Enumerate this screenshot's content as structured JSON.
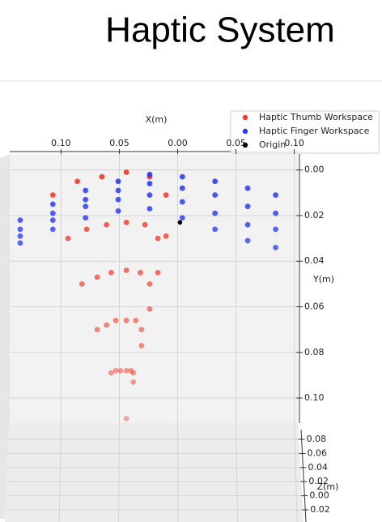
{
  "chart_data": {
    "type": "scatter3d",
    "title": "Haptic System",
    "xlabel": "X(m)",
    "ylabel": "Y(m)",
    "zlabel": "Z(m)",
    "xlim": [
      0.144,
      -0.103
    ],
    "xticks": [
      {
        "value": 0.1,
        "label": "0.10"
      },
      {
        "value": 0.05,
        "label": "0.05"
      },
      {
        "value": 0,
        "label": "0.00"
      },
      {
        "value": -0.05,
        "label": "0.05"
      },
      {
        "value": -0.1,
        "label": "0.10"
      }
    ],
    "ylim": [
      -0.007,
      0.111
    ],
    "yticks": [
      {
        "value": 0,
        "label": "0.00"
      },
      {
        "value": 0.02,
        "label": "0.02"
      },
      {
        "value": 0.04,
        "label": "0.04"
      },
      {
        "value": 0.06,
        "label": "0.06"
      },
      {
        "value": 0.08,
        "label": "0.08"
      },
      {
        "value": 0.1,
        "label": "0.10"
      }
    ],
    "zlim": [
      0.09,
      -0.03
    ],
    "zticks": [
      {
        "value": 0.08,
        "label": "0.08"
      },
      {
        "value": 0.06,
        "label": "0.06"
      },
      {
        "value": 0.04,
        "label": "0.04"
      },
      {
        "value": 0.02,
        "label": "0.02"
      },
      {
        "value": 0,
        "label": "0.00"
      },
      {
        "value": -0.02,
        "label": "0.02"
      }
    ],
    "grid": true,
    "legend": "upper right",
    "series": [
      {
        "name": "Haptic Thumb Workspace",
        "color": "#f03a2a",
        "x": [
          0.107,
          0.094,
          0.082,
          0.069,
          0.057,
          0.086,
          0.078,
          0.069,
          0.061,
          0.053,
          0.065,
          0.061,
          0.057,
          0.053,
          0.049,
          0.044,
          0.044,
          0.044,
          0.044,
          0.044,
          0.024,
          0.028,
          0.032,
          0.036,
          0.04,
          0.01,
          0.017,
          0.024,
          0.031,
          0.038,
          0.01,
          0.017,
          0.024,
          0.031,
          0.038,
          0.044
        ],
        "y": [
          0.011,
          0.03,
          0.05,
          0.07,
          0.089,
          0.005,
          0.026,
          0.047,
          0.068,
          0.088,
          0.003,
          0.024,
          0.045,
          0.066,
          0.088,
          0.001,
          0.023,
          0.044,
          0.066,
          0.088,
          0.003,
          0.024,
          0.045,
          0.066,
          0.088,
          0.011,
          0.03,
          0.05,
          0.07,
          0.089,
          0.029,
          0.045,
          0.061,
          0.077,
          0.093,
          0.109
        ]
      },
      {
        "name": "Haptic Finger Workspace",
        "color": "#2b3df0",
        "x": [
          0.135,
          0.107,
          0.079,
          0.051,
          0.024,
          -0.004,
          -0.032,
          -0.06,
          -0.084,
          0.135,
          0.107,
          0.079,
          0.051,
          0.024,
          -0.004,
          -0.032,
          -0.06,
          -0.084,
          0.135,
          0.107,
          0.079,
          0.051,
          0.024,
          -0.004,
          -0.032,
          -0.06,
          -0.084,
          0.135,
          0.107,
          0.079,
          0.051,
          0.024,
          -0.004,
          -0.032,
          -0.06,
          -0.084
        ],
        "y": [
          0.022,
          0.015,
          0.009,
          0.005,
          0.002,
          0.003,
          0.005,
          0.008,
          0.011,
          0.026,
          0.019,
          0.013,
          0.009,
          0.006,
          0.008,
          0.011,
          0.016,
          0.019,
          0.029,
          0.022,
          0.016,
          0.013,
          0.011,
          0.014,
          0.019,
          0.024,
          0.026,
          0.032,
          0.026,
          0.021,
          0.018,
          0.017,
          0.021,
          0.026,
          0.031,
          0.034
        ]
      },
      {
        "name": "Origin",
        "color": "#000000",
        "x": [
          -0.002
        ],
        "y": [
          0.023
        ]
      }
    ]
  }
}
